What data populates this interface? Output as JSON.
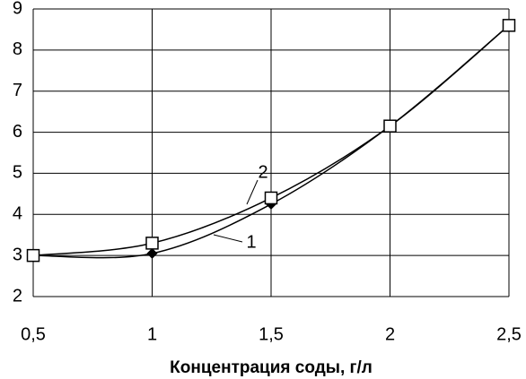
{
  "chart_data": {
    "type": "line",
    "xlabel": "Концентрация соды, г/л",
    "x": [
      0.5,
      1,
      1.5,
      2,
      2.5
    ],
    "series": [
      {
        "name": "1",
        "color": "#000000",
        "marker": "diamond",
        "values": [
          3.0,
          3.05,
          4.25,
          6.15,
          8.6
        ]
      },
      {
        "name": "2",
        "color": "#000000",
        "marker": "square",
        "values": [
          3.0,
          3.3,
          4.4,
          6.15,
          8.6
        ]
      }
    ],
    "xlim": [
      0.5,
      2.5
    ],
    "xticks": [
      {
        "value": 0.5,
        "label": "0,5"
      },
      1,
      {
        "value": 1.5,
        "label": "1,5"
      },
      2,
      {
        "value": 2.5,
        "label": "2,5"
      }
    ],
    "ylim": [
      2,
      9
    ],
    "yticks": [
      2,
      3,
      4,
      5,
      6,
      7,
      8,
      9
    ],
    "grid": true
  }
}
